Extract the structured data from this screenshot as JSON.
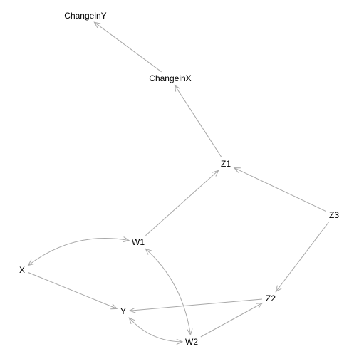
{
  "graph": {
    "nodes": [
      {
        "id": "ChangeinY",
        "label": "ChangeinY"
      },
      {
        "id": "ChangeinX",
        "label": "ChangeinX"
      },
      {
        "id": "Z1",
        "label": "Z1"
      },
      {
        "id": "Z3",
        "label": "Z3"
      },
      {
        "id": "W1",
        "label": "W1"
      },
      {
        "id": "X",
        "label": "X"
      },
      {
        "id": "Z2",
        "label": "Z2"
      },
      {
        "id": "Y",
        "label": "Y"
      },
      {
        "id": "W2",
        "label": "W2"
      }
    ],
    "edges": [
      {
        "from": "ChangeinX",
        "to": "ChangeinY",
        "type": "directed"
      },
      {
        "from": "Z1",
        "to": "ChangeinX",
        "type": "directed"
      },
      {
        "from": "W1",
        "to": "Z1",
        "type": "directed"
      },
      {
        "from": "Z3",
        "to": "Z1",
        "type": "directed"
      },
      {
        "from": "Z3",
        "to": "Z2",
        "type": "directed"
      },
      {
        "from": "X",
        "to": "W1",
        "type": "bidirected"
      },
      {
        "from": "X",
        "to": "Y",
        "type": "directed"
      },
      {
        "from": "W1",
        "to": "W2",
        "type": "bidirected"
      },
      {
        "from": "Z2",
        "to": "Y",
        "type": "directed"
      },
      {
        "from": "W2",
        "to": "Z2",
        "type": "directed"
      },
      {
        "from": "Y",
        "to": "W2",
        "type": "bidirected"
      }
    ],
    "colors": {
      "edge": "#a8a8a8",
      "label": "#000000",
      "background": "#ffffff"
    }
  }
}
